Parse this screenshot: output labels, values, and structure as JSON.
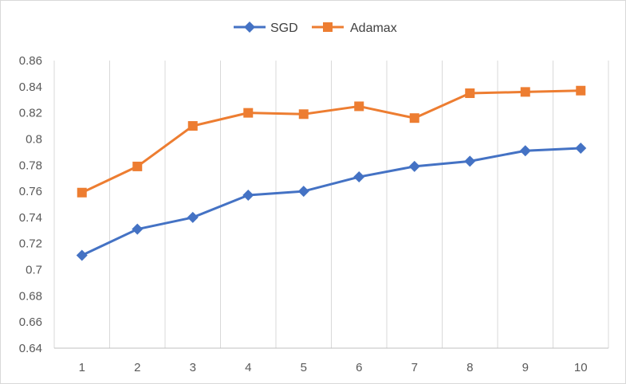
{
  "chart_data": {
    "type": "line",
    "title": "",
    "xlabel": "",
    "ylabel": "",
    "x": [
      1,
      2,
      3,
      4,
      5,
      6,
      7,
      8,
      9,
      10
    ],
    "x_tick_labels": [
      "1",
      "2",
      "3",
      "4",
      "5",
      "6",
      "7",
      "8",
      "9",
      "10"
    ],
    "ylim": [
      0.64,
      0.86
    ],
    "y_ticks": [
      0.64,
      0.66,
      0.68,
      0.7,
      0.72,
      0.74,
      0.76,
      0.78,
      0.8,
      0.82,
      0.84,
      0.86
    ],
    "y_tick_labels": [
      "0.64",
      "0.66",
      "0.68",
      "0.7",
      "0.72",
      "0.74",
      "0.76",
      "0.78",
      "0.8",
      "0.82",
      "0.84",
      "0.86"
    ],
    "grid": "vertical",
    "legend_position": "top-center",
    "series": [
      {
        "name": "SGD",
        "color": "#4472c4",
        "marker": "diamond",
        "values": [
          0.711,
          0.731,
          0.74,
          0.757,
          0.76,
          0.771,
          0.779,
          0.783,
          0.791,
          0.793
        ]
      },
      {
        "name": "Adamax",
        "color": "#ed7d31",
        "marker": "square",
        "values": [
          0.759,
          0.779,
          0.81,
          0.82,
          0.819,
          0.825,
          0.816,
          0.835,
          0.836,
          0.837
        ]
      }
    ]
  }
}
